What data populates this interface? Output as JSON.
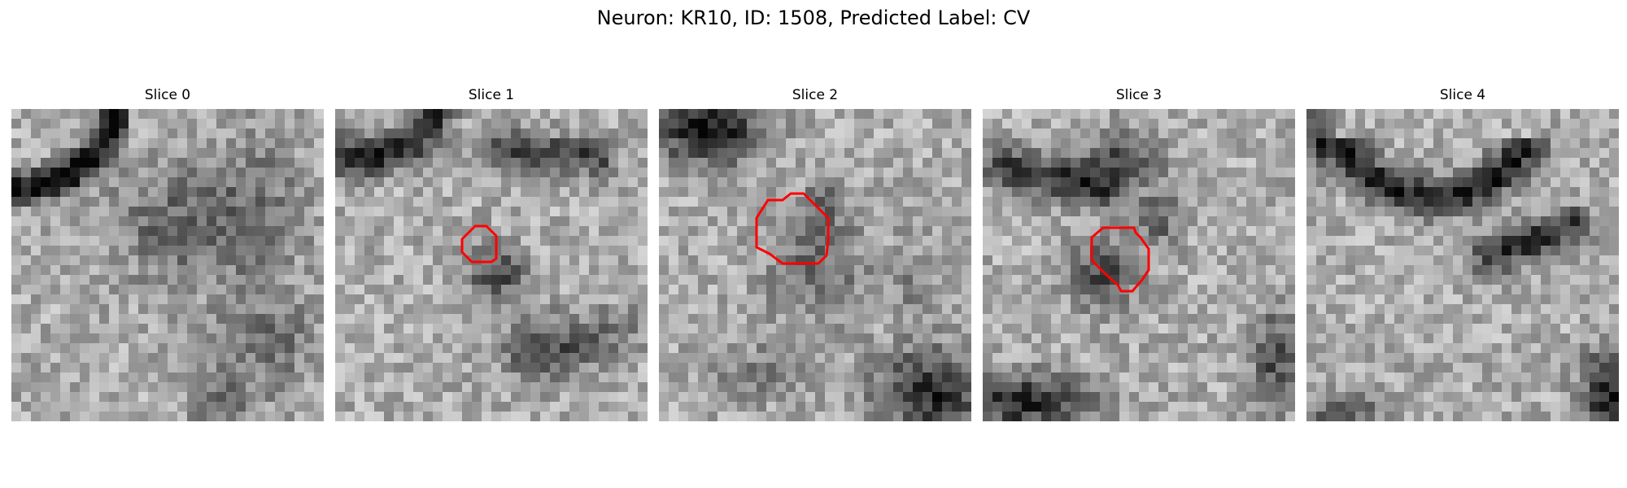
{
  "figure": {
    "title": "Neuron: KR10, ID: 1508, Predicted Label: CV",
    "colormap": "gray",
    "contour_color": "#ff0000",
    "grid_size": 32
  },
  "panels": [
    {
      "title": "Slice 0",
      "has_contour": false,
      "dark_structures": [
        "upper-left curved dark membrane",
        "faint central dark blob"
      ]
    },
    {
      "title": "Slice 1",
      "has_contour": true,
      "contour_label": "roi-outline-small",
      "dark_structures": [
        "upper-left dark membrane",
        "upper-right dark band",
        "central dark blob inside contour"
      ]
    },
    {
      "title": "Slice 2",
      "has_contour": true,
      "contour_label": "roi-outline-large",
      "dark_structures": [
        "upper-left dark patch",
        "central gray blob inside contour",
        "lower-right dark region"
      ]
    },
    {
      "title": "Slice 3",
      "has_contour": true,
      "contour_label": "roi-outline-medium",
      "dark_structures": [
        "upper-left dark band",
        "central dark blob inside contour",
        "bottom-left dark region"
      ]
    },
    {
      "title": "Slice 4",
      "has_contour": false,
      "dark_structures": [
        "upper curved dark membrane",
        "diagonal dark band right",
        "bottom-right dark corner"
      ]
    }
  ]
}
